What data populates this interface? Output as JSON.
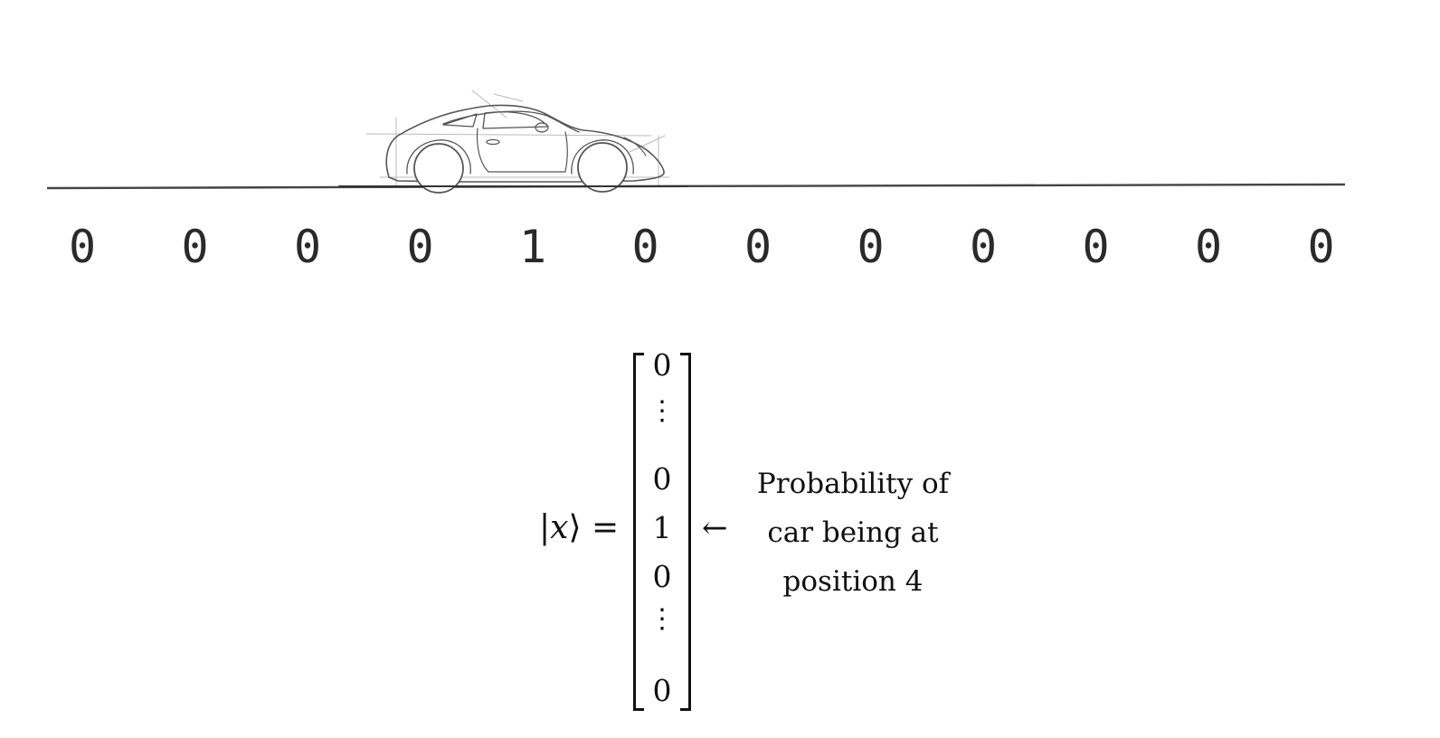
{
  "tape": {
    "values": [
      "0",
      "0",
      "0",
      "0",
      "1",
      "0",
      "0",
      "0",
      "0",
      "0",
      "0",
      "0"
    ]
  },
  "car": {
    "icon": "car-icon",
    "position_index": 4
  },
  "equation": {
    "lhs_bar": "|",
    "lhs_var": "x",
    "lhs_rangle": "⟩",
    "equals": "=",
    "vector": [
      "0",
      "⋮",
      "0",
      "1",
      "0",
      "⋮",
      "0"
    ],
    "arrow": "←",
    "annotation": [
      "Probability of",
      "car being at",
      "position 4"
    ]
  }
}
